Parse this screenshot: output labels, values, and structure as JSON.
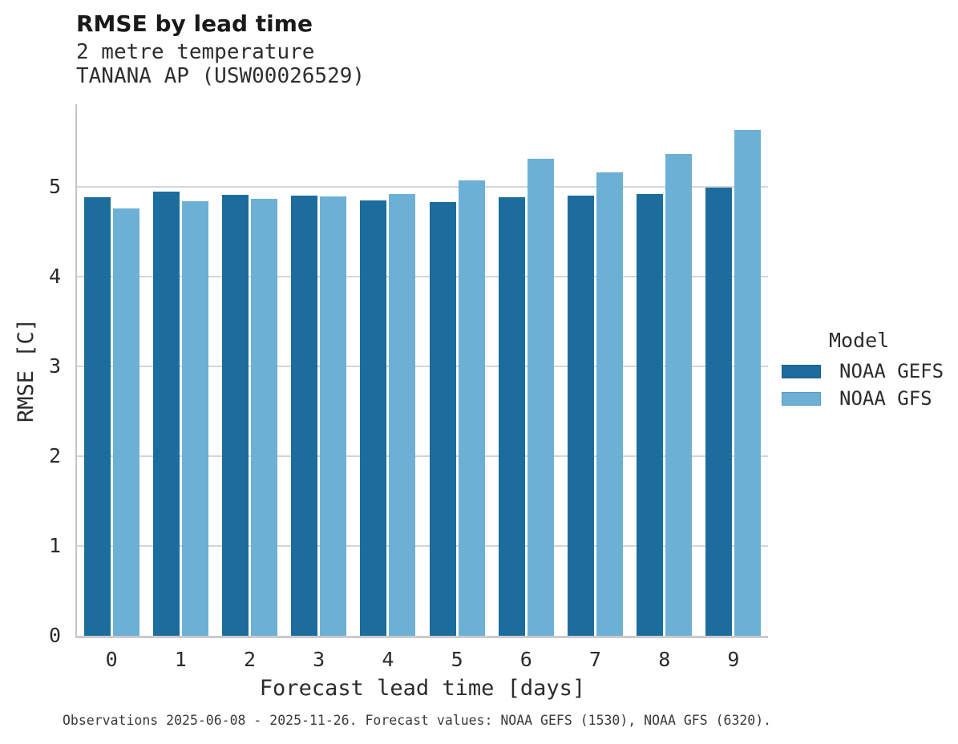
{
  "chart_data": {
    "type": "bar",
    "title": "RMSE by lead time",
    "subtitle_line1": "2 metre temperature",
    "subtitle_line2": "TANANA AP (USW00026529)",
    "xlabel": "Forecast lead time [days]",
    "ylabel": "RMSE [C]",
    "legend_title": "Model",
    "legend_position": "right",
    "grid": "horizontal",
    "categories": [
      "0",
      "1",
      "2",
      "3",
      "4",
      "5",
      "6",
      "7",
      "8",
      "9"
    ],
    "series": [
      {
        "name": "NOAA GEFS",
        "color": "#1c6d9d",
        "values": [
          4.88,
          4.95,
          4.91,
          4.9,
          4.85,
          4.83,
          4.88,
          4.9,
          4.92,
          4.99
        ]
      },
      {
        "name": "NOAA GFS",
        "color": "#6cb0d6",
        "values": [
          4.76,
          4.84,
          4.87,
          4.89,
          4.92,
          5.07,
          5.31,
          5.16,
          5.37,
          5.63
        ]
      }
    ],
    "ylim": [
      0,
      5.92
    ],
    "yticks": [
      0,
      1,
      2,
      3,
      4,
      5
    ],
    "caption": "Observations 2025-06-08 - 2025-11-26. Forecast values: NOAA GEFS (1530), NOAA GFS (6320).",
    "colors": {
      "grid": "#d5d5d5",
      "spine": "#c6c6c6",
      "text": "#2b2b2b"
    }
  }
}
